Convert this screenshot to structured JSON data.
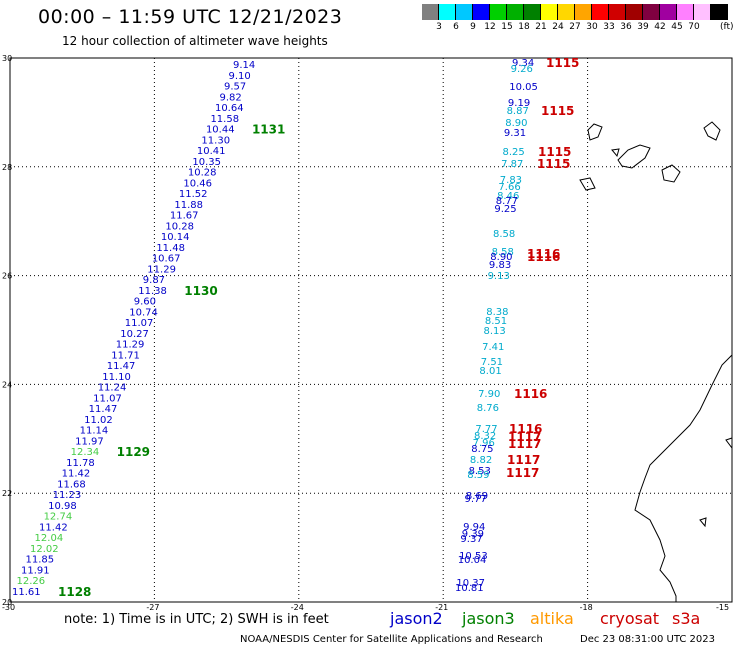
{
  "header": {
    "title": "00:00 – 11:59 UTC 12/21/2023",
    "subtitle": "12 hour collection of altimeter wave heights"
  },
  "colorbar": {
    "colors": [
      "#808080",
      "#00ffff",
      "#00c8ff",
      "#0000ff",
      "#00d000",
      "#00b000",
      "#008000",
      "#ffff00",
      "#ffd700",
      "#ffa500",
      "#ff0000",
      "#d00000",
      "#a00000",
      "#800040",
      "#a000a0",
      "#ff80ff",
      "#ffc0ff",
      "#000000"
    ],
    "labels": [
      "3",
      "6",
      "9",
      "12",
      "15",
      "18",
      "21",
      "24",
      "27",
      "30",
      "33",
      "36",
      "39",
      "42",
      "45",
      "70"
    ],
    "units": "(ft)"
  },
  "axes": {
    "lat_labels": [
      "30",
      "28",
      "26",
      "24",
      "22",
      "20"
    ],
    "lon_labels": [
      "-30",
      "-27",
      "-24",
      "-21",
      "-18",
      "-15"
    ]
  },
  "colors": {
    "jason2": "#0000c8",
    "jason3": "#008000",
    "altika": "#ff9900",
    "cryosat": "#cc0000",
    "s3a": "#cc0000",
    "light_blue": "#00aacc",
    "light_green": "#44cc44"
  },
  "tracks": {
    "west": {
      "values": [
        "9.14",
        "9.10",
        "9.57",
        "9.82",
        "10.64",
        "11.58",
        "10.44",
        "11.30",
        "10.41",
        "10.35",
        "10.28",
        "10.46",
        "11.52",
        "11.88",
        "11.67",
        "10.28",
        "10.14",
        "11.48",
        "10.67",
        "11.29",
        "9.87",
        "11.38",
        "9.60",
        "10.74",
        "11.07",
        "10.27",
        "11.29",
        "11.71",
        "11.47",
        "11.10",
        "11.24",
        "11.07",
        "11.47",
        "11.02",
        "11.14",
        "11.97",
        "12.34",
        "11.78",
        "11.42",
        "11.68",
        "11.23",
        "10.98",
        "12.74",
        "11.42",
        "12.04",
        "12.02",
        "11.85",
        "11.91",
        "12.26",
        "11.61"
      ],
      "light": [
        36,
        42,
        44,
        45,
        48
      ],
      "times": [
        {
          "label": "1131",
          "idx": 6
        },
        {
          "label": "1130",
          "idx": 21
        },
        {
          "label": "1129",
          "idx": 36
        },
        {
          "label": "1128",
          "idx": 49
        }
      ]
    },
    "east": [
      {
        "v": "9.34",
        "c": "b"
      },
      {
        "v": "9.26",
        "c": "l"
      },
      {
        "v": "10.05",
        "c": "b"
      },
      {
        "v": "9.19",
        "c": "b"
      },
      {
        "v": "8.87",
        "c": "l"
      },
      {
        "v": "8.90",
        "c": "l"
      },
      {
        "v": "9.31",
        "c": "b"
      },
      {
        "v": "8.25",
        "c": "l"
      },
      {
        "v": "7.87",
        "c": "l"
      },
      {
        "v": "7.83",
        "c": "l"
      },
      {
        "v": "7.66",
        "c": "l"
      },
      {
        "v": "8.46",
        "c": "l"
      },
      {
        "v": "8.77",
        "c": "b"
      },
      {
        "v": "9.25",
        "c": "b"
      },
      {
        "v": "8.58",
        "c": "l"
      },
      {
        "v": "8.58",
        "c": "l"
      },
      {
        "v": "8.90",
        "c": "b"
      },
      {
        "v": "9.83",
        "c": "b"
      },
      {
        "v": "9.13",
        "c": "l"
      },
      {
        "v": "8.38",
        "c": "l"
      },
      {
        "v": "8.51",
        "c": "l"
      },
      {
        "v": "8.13",
        "c": "l"
      },
      {
        "v": "7.41",
        "c": "l"
      },
      {
        "v": "7.51",
        "c": "l"
      },
      {
        "v": "8.01",
        "c": "l"
      },
      {
        "v": "7.90",
        "c": "l"
      },
      {
        "v": "8.76",
        "c": "l"
      },
      {
        "v": "7.77",
        "c": "l"
      },
      {
        "v": "8.32",
        "c": "l"
      },
      {
        "v": "7.96",
        "c": "l"
      },
      {
        "v": "8.75",
        "c": "b"
      },
      {
        "v": "8.82",
        "c": "l"
      },
      {
        "v": "8.53",
        "c": "b"
      },
      {
        "v": "8.59",
        "c": "l"
      },
      {
        "v": "8.69",
        "c": "b"
      },
      {
        "v": "9.77",
        "c": "b"
      },
      {
        "v": "9.94",
        "c": "b"
      },
      {
        "v": "9.39",
        "c": "b"
      },
      {
        "v": "9.37",
        "c": "b"
      },
      {
        "v": "10.53",
        "c": "b"
      },
      {
        "v": "10.04",
        "c": "b"
      },
      {
        "v": "10.37",
        "c": "b"
      },
      {
        "v": "10.81",
        "c": "b"
      }
    ],
    "east_times": [
      "1115",
      "1115",
      "1115",
      "1115",
      "1116",
      "1116",
      "1116",
      "1116",
      "1117",
      "1117",
      "1117",
      "1117"
    ]
  },
  "footer": {
    "note": "note: 1) Time is in UTC; 2) SWH is in feet",
    "legend": [
      {
        "label": "jason2",
        "color": "#0000c8"
      },
      {
        "label": "jason3",
        "color": "#008000"
      },
      {
        "label": "altika",
        "color": "#ff9900"
      },
      {
        "label": "cryosat",
        "color": "#cc0000"
      },
      {
        "label": "s3a",
        "color": "#cc0000"
      }
    ],
    "credit": "NOAA/NESDIS Center for Satellite Applications and Research",
    "timestamp": "Dec 23 08:31:00 UTC 2023"
  }
}
